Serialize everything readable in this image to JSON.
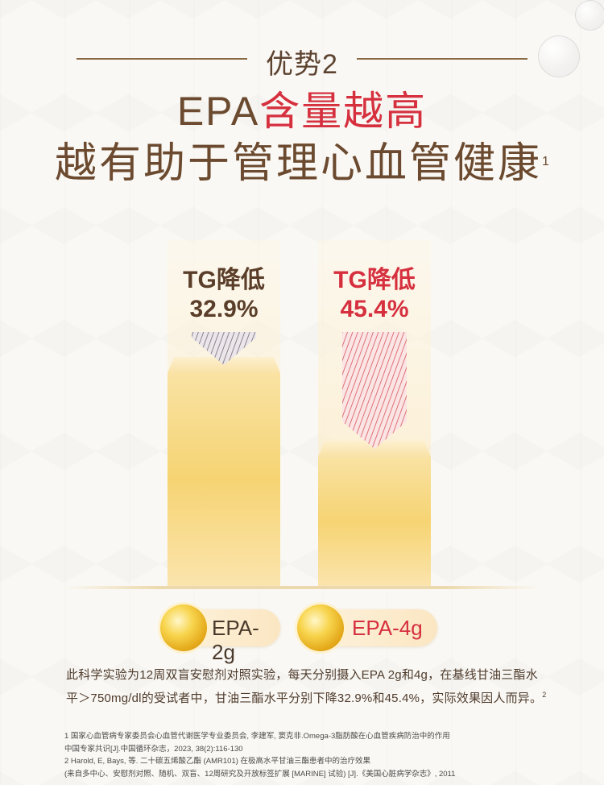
{
  "header": {
    "advantage_label": "优势2",
    "title_part1": "EPA",
    "title_part2": "含量越高",
    "title_line2": "越有助于管理心血管健康",
    "title_footnote": "1"
  },
  "chart_data": {
    "type": "bar",
    "categories": [
      "EPA-2g",
      "EPA-4g"
    ],
    "series": [
      {
        "name": "TG降低",
        "values": [
          32.9,
          45.4
        ]
      }
    ],
    "value_labels": [
      "32.9%",
      "45.4%"
    ],
    "bar_label_prefix": [
      "TG降低",
      "TG降低"
    ],
    "ylabel": "",
    "xlabel": "",
    "ylim": [
      0,
      100
    ],
    "legend": [
      "EPA-2g",
      "EPA-4g"
    ]
  },
  "colors": {
    "dark_text": "#5a3e29",
    "accent_red": "#d6303f",
    "bar_gold": "#f6d57c",
    "capsule_gold": "#e4a91a"
  },
  "description": {
    "text": "此科学实验为12周双盲安慰剂对照实验，每天分别摄入EPA 2g和4g，在基线甘油三酯水平＞750mg/dl的受试者中，甘油三酯水平分别下降32.9%和45.4%，实际效果因人而异。",
    "footnote": "2"
  },
  "references": [
    "1  国家心血管病专家委员会心血管代谢医学专业委员会, 李建军, 窦克非.Omega-3脂肪酸在心血管疾病防治中的作用",
    "    中国专家共识[J].中国循环杂志，2023, 38(2):116-130",
    "2  Harold, E, Bays, 等. 二十碳五烯酸乙酯 (AMR101) 在极高水平甘油三酯患者中的治疗效果",
    "    (来自多中心、安慰剂对照、随机、双盲、12周研究及开放标签扩展 [MARINE] 试验) [J].《美国心脏病学杂志》, 2011"
  ],
  "icons": {
    "capsule": "capsule-icon",
    "arrow": "down-arrow-icon"
  }
}
